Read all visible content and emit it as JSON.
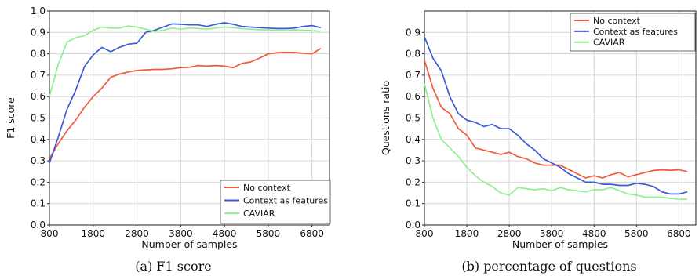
{
  "chart_data": [
    {
      "type": "line",
      "caption": "(a) F1 score",
      "xlabel": "Number of samples",
      "ylabel": "F1 score",
      "xlim": [
        800,
        7200
      ],
      "ylim": [
        0.0,
        1.0
      ],
      "xticks": [
        "800",
        "1800",
        "2800",
        "3800",
        "4800",
        "5800",
        "6800"
      ],
      "yticks": [
        "0.0",
        "0.1",
        "0.2",
        "0.3",
        "0.4",
        "0.5",
        "0.6",
        "0.7",
        "0.8",
        "0.9",
        "1.0"
      ],
      "grid": true,
      "legend": "bottom-right",
      "x": [
        800,
        1000,
        1200,
        1400,
        1600,
        1800,
        2000,
        2200,
        2400,
        2600,
        2800,
        3000,
        3200,
        3400,
        3600,
        3800,
        4000,
        4200,
        4400,
        4600,
        4800,
        5000,
        5200,
        5400,
        5600,
        5800,
        6000,
        6200,
        6400,
        6600,
        6800,
        7000
      ],
      "series": [
        {
          "name": "No context",
          "color": "#f05a3c",
          "values": [
            0.31,
            0.38,
            0.44,
            0.49,
            0.55,
            0.6,
            0.64,
            0.69,
            0.705,
            0.715,
            0.722,
            0.725,
            0.727,
            0.727,
            0.73,
            0.735,
            0.737,
            0.745,
            0.742,
            0.745,
            0.742,
            0.735,
            0.755,
            0.762,
            0.78,
            0.8,
            0.805,
            0.807,
            0.806,
            0.803,
            0.8,
            0.825
          ]
        },
        {
          "name": "Context as features",
          "color": "#3a5bd6",
          "values": [
            0.29,
            0.41,
            0.54,
            0.63,
            0.74,
            0.795,
            0.83,
            0.81,
            0.83,
            0.845,
            0.85,
            0.9,
            0.91,
            0.925,
            0.94,
            0.938,
            0.935,
            0.935,
            0.928,
            0.938,
            0.945,
            0.938,
            0.928,
            0.925,
            0.922,
            0.92,
            0.918,
            0.918,
            0.92,
            0.928,
            0.932,
            0.922
          ]
        },
        {
          "name": "CAVIAR",
          "color": "#90f090",
          "values": [
            0.6,
            0.75,
            0.855,
            0.875,
            0.885,
            0.91,
            0.925,
            0.92,
            0.92,
            0.93,
            0.925,
            0.915,
            0.905,
            0.91,
            0.92,
            0.915,
            0.92,
            0.918,
            0.915,
            0.92,
            0.925,
            0.922,
            0.918,
            0.915,
            0.912,
            0.912,
            0.91,
            0.91,
            0.912,
            0.91,
            0.908,
            0.905
          ]
        }
      ]
    },
    {
      "type": "line",
      "caption": "(b) percentage of questions",
      "xlabel": "Number of samples",
      "ylabel": "Questions ratio",
      "xlim": [
        800,
        7200
      ],
      "ylim": [
        0.0,
        1.0
      ],
      "xticks": [
        "800",
        "1800",
        "2800",
        "3800",
        "4800",
        "5800",
        "6800"
      ],
      "yticks": [
        "0.0",
        "0.1",
        "0.2",
        "0.3",
        "0.4",
        "0.5",
        "0.6",
        "0.7",
        "0.8",
        "0.9"
      ],
      "grid": true,
      "legend": "top-right",
      "x": [
        800,
        1000,
        1200,
        1400,
        1600,
        1800,
        2000,
        2200,
        2400,
        2600,
        2800,
        3000,
        3200,
        3400,
        3600,
        3800,
        4000,
        4200,
        4400,
        4600,
        4800,
        5000,
        5200,
        5400,
        5600,
        5800,
        6000,
        6200,
        6400,
        6600,
        6800,
        7000
      ],
      "series": [
        {
          "name": "No context",
          "color": "#f05a3c",
          "values": [
            0.77,
            0.64,
            0.55,
            0.52,
            0.45,
            0.42,
            0.36,
            0.35,
            0.34,
            0.33,
            0.34,
            0.32,
            0.31,
            0.29,
            0.28,
            0.28,
            0.28,
            0.26,
            0.24,
            0.22,
            0.23,
            0.22,
            0.235,
            0.245,
            0.225,
            0.235,
            0.245,
            0.255,
            0.258,
            0.256,
            0.258,
            0.25
          ]
        },
        {
          "name": "Context as features",
          "color": "#3a5bd6",
          "values": [
            0.88,
            0.78,
            0.72,
            0.6,
            0.52,
            0.49,
            0.48,
            0.46,
            0.47,
            0.45,
            0.45,
            0.42,
            0.38,
            0.35,
            0.31,
            0.29,
            0.27,
            0.24,
            0.22,
            0.2,
            0.2,
            0.19,
            0.19,
            0.185,
            0.185,
            0.195,
            0.19,
            0.18,
            0.155,
            0.145,
            0.145,
            0.155
          ]
        },
        {
          "name": "CAVIAR",
          "color": "#90f090",
          "values": [
            0.66,
            0.5,
            0.4,
            0.36,
            0.32,
            0.27,
            0.23,
            0.2,
            0.18,
            0.15,
            0.14,
            0.175,
            0.17,
            0.165,
            0.17,
            0.16,
            0.175,
            0.165,
            0.16,
            0.155,
            0.165,
            0.165,
            0.175,
            0.16,
            0.145,
            0.14,
            0.13,
            0.13,
            0.13,
            0.125,
            0.12,
            0.12
          ]
        }
      ]
    }
  ]
}
